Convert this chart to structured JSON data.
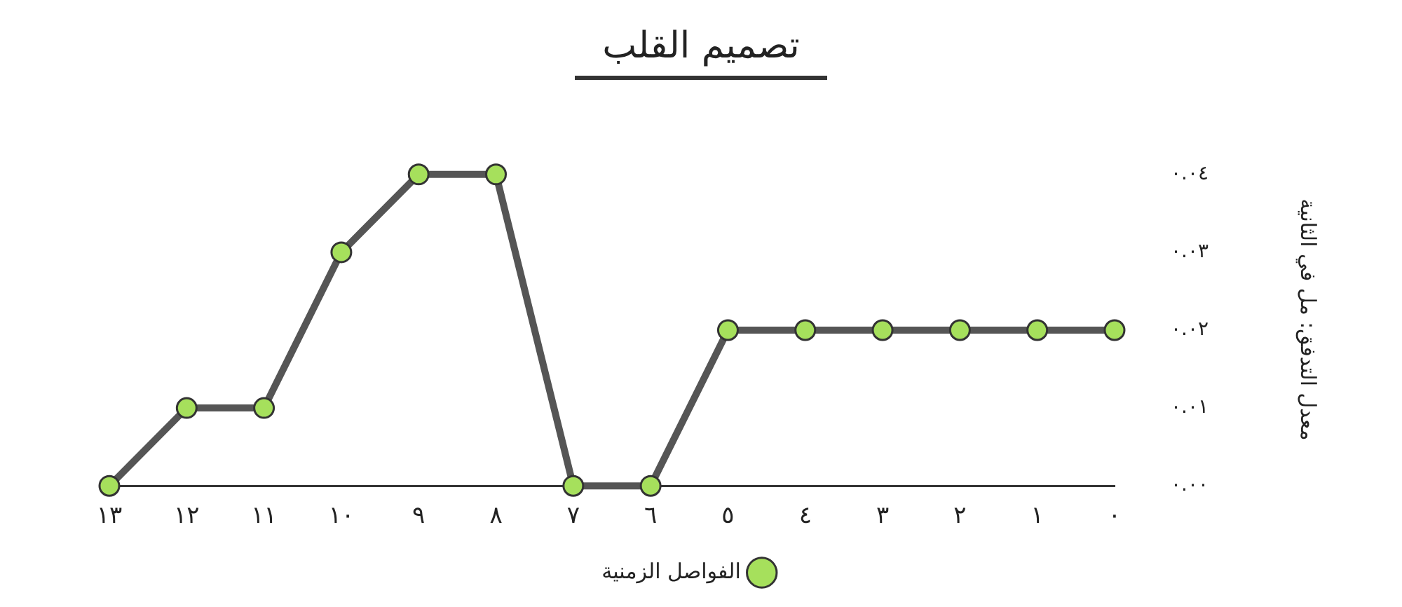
{
  "chart_data": {
    "type": "line",
    "title": "تصميم القلب",
    "ylabel": "معدل التدفق: مل في الثانية",
    "categories": [
      "١٣",
      "١٢",
      "١١",
      "١٠",
      "٩",
      "٨",
      "٧",
      "٦",
      "٥",
      "٤",
      "٣",
      "٢",
      "١",
      "٠"
    ],
    "series": [
      {
        "name": "الفواصل الزمنية",
        "color": "#a6e05c",
        "values": [
          0,
          0.01,
          0.01,
          0.03,
          0.04,
          0.04,
          0,
          0,
          0.02,
          0.02,
          0.02,
          0.02,
          0.02,
          0.02
        ]
      }
    ],
    "ylim": [
      0,
      0.04
    ],
    "yticks": [
      {
        "value": 0,
        "label": "٠.٠٠"
      },
      {
        "value": 0.01,
        "label": "٠.٠١"
      },
      {
        "value": 0.02,
        "label": "٠.٠٢"
      },
      {
        "value": 0.03,
        "label": "٠.٠٣"
      },
      {
        "value": 0.04,
        "label": "٠.٠٤"
      }
    ],
    "legend": "bottom",
    "marker": "circle",
    "line_style": "solid"
  }
}
